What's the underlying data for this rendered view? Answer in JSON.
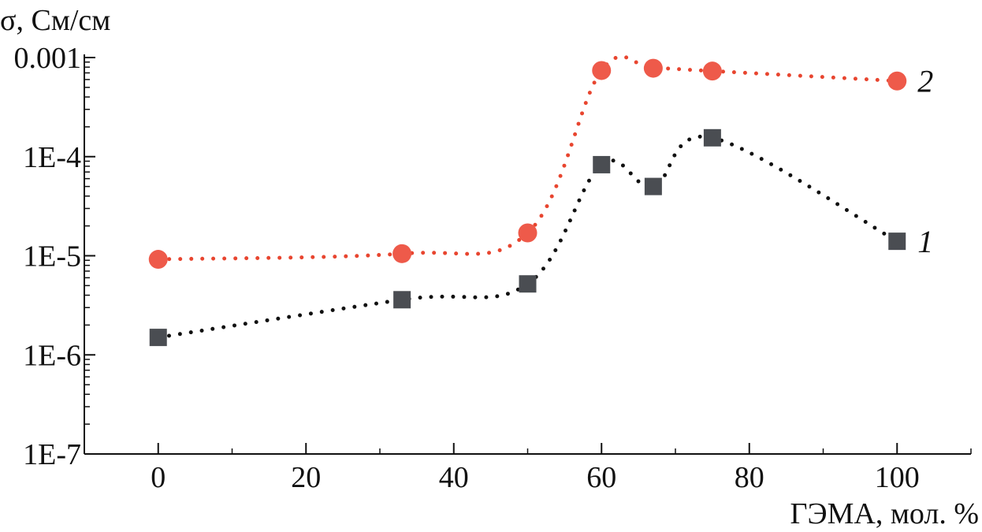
{
  "chart_data": {
    "type": "scatter",
    "title": "",
    "xlabel": "ГЭМА, мол. %",
    "ylabel": "σ, См/см",
    "xlim": [
      -10,
      110
    ],
    "ylim": [
      1e-07,
      0.001
    ],
    "yscale": "log",
    "grid": false,
    "x_ticks": [
      0,
      20,
      40,
      60,
      80,
      100
    ],
    "x_tick_labels": [
      "0",
      "20",
      "40",
      "60",
      "80",
      "100"
    ],
    "y_ticks": [
      1e-07,
      1e-06,
      1e-05,
      0.0001,
      0.001
    ],
    "y_tick_labels": [
      "1E-7",
      "1E-6",
      "1E-5",
      "1E-4",
      "0.001"
    ],
    "series": [
      {
        "name": "1",
        "marker": "square",
        "color": "#4a4d52",
        "line_color": "#111111",
        "x": [
          0,
          33,
          50,
          60,
          67,
          75,
          100
        ],
        "y": [
          1.5e-06,
          3.6e-06,
          5.2e-06,
          8.3e-05,
          5e-05,
          0.000155,
          1.4e-05
        ]
      },
      {
        "name": "2",
        "marker": "circle",
        "color": "#ee5a4a",
        "line_color": "#e8452f",
        "x": [
          0,
          33,
          50,
          60,
          67,
          75,
          100
        ],
        "y": [
          9.2e-06,
          1.05e-05,
          1.7e-05,
          0.00074,
          0.00078,
          0.00073,
          0.00058
        ]
      }
    ]
  }
}
